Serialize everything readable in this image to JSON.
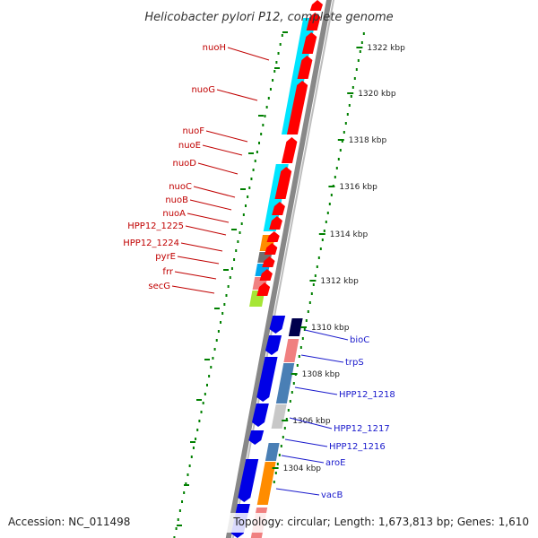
{
  "title": "Helicobacter pylori P12, complete genome",
  "footer": {
    "accession": "Accession: NC_011498",
    "summary": "Topology: circular; Length: 1,673,813 bp; Genes: 1,610"
  },
  "ticks": [
    {
      "label": "1322 kbp",
      "kbp": 1322
    },
    {
      "label": "1320 kbp",
      "kbp": 1320
    },
    {
      "label": "1318 kbp",
      "kbp": 1318
    },
    {
      "label": "1316 kbp",
      "kbp": 1316
    },
    {
      "label": "1314 kbp",
      "kbp": 1314
    },
    {
      "label": "1312 kbp",
      "kbp": 1312
    },
    {
      "label": "1310 kbp",
      "kbp": 1310
    },
    {
      "label": "1308 kbp",
      "kbp": 1308
    },
    {
      "label": "1306 kbp",
      "kbp": 1306
    },
    {
      "label": "1304 kbp",
      "kbp": 1304
    }
  ],
  "genes_red": [
    "nuoH",
    "nuoG",
    "nuoF",
    "nuoE",
    "nuoD",
    "nuoC",
    "nuoB",
    "nuoA",
    "HPP12_1225",
    "HPP12_1224",
    "pyrE",
    "frr",
    "secG"
  ],
  "genes_blue": [
    "bioC",
    "trpS",
    "HPP12_1218",
    "HPP12_1217",
    "HPP12_1216",
    "aroE",
    "vacB"
  ],
  "colors": {
    "forward": "#ff0000",
    "reverse": "#0000e6",
    "cyan": "#00e5ff",
    "orange": "#ff8c00",
    "gray": "#707070",
    "skyblue": "#00a8f0",
    "salmon": "#f08080",
    "lime": "#a6e635",
    "steel": "#4a7fb5",
    "navy": "#00004d",
    "lightgray": "#c8c8c8",
    "tick": "#008000",
    "backbone": "#888888"
  }
}
